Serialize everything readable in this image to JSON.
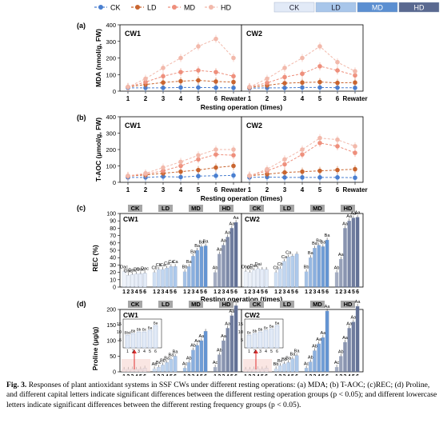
{
  "legend_line": [
    {
      "name": "CK",
      "color": "#4a7fd0"
    },
    {
      "name": "LD",
      "color": "#c9652f"
    },
    {
      "name": "MD",
      "color": "#ee8f7c"
    },
    {
      "name": "HD",
      "color": "#f2b9ab"
    }
  ],
  "legend_bar": [
    {
      "name": "CK",
      "color": "#e2eaf7"
    },
    {
      "name": "LD",
      "color": "#a8c6ea"
    },
    {
      "name": "MD",
      "color": "#5b8fd1"
    },
    {
      "name": "HD",
      "color": "#5a6990"
    }
  ],
  "panels": {
    "a": {
      "letter": "(a)",
      "ylabel": "MDA (nmol/g, FW)",
      "xlabel": "Resting operation (times)",
      "yticks": [
        "0",
        "100",
        "200",
        "300",
        "400"
      ],
      "xticks": [
        "1",
        "2",
        "3",
        "4",
        "5",
        "6",
        "Rewater"
      ],
      "sub": [
        "CW1",
        "CW2"
      ]
    },
    "b": {
      "letter": "(b)",
      "ylabel": "T-AOC (μmol/g, FW)",
      "xlabel": "Resting operation (times)",
      "yticks": [
        "0",
        "100",
        "200",
        "300",
        "400"
      ],
      "xticks": [
        "1",
        "2",
        "3",
        "4",
        "5",
        "6",
        "Rewater"
      ],
      "sub": [
        "CW1",
        "CW2"
      ]
    },
    "c": {
      "letter": "(c)",
      "ylabel": "REC (%)",
      "xlabel": "Resting operation (times)",
      "yticks": [
        "0",
        "10",
        "20",
        "30",
        "40",
        "50",
        "60",
        "70",
        "80",
        "90",
        "100"
      ],
      "group_tags": [
        "CK",
        "LD",
        "MD",
        "HD"
      ],
      "xticks": [
        "1",
        "2",
        "3",
        "4",
        "5",
        "6"
      ],
      "sub": [
        "CW1",
        "CW2"
      ]
    },
    "d": {
      "letter": "(d)",
      "ylabel": "Proline (μg/g)",
      "xlabel": "Resting operation (times)",
      "yticks": [
        "0",
        "50",
        "100",
        "150",
        "200"
      ],
      "inset_yticks": [
        "5",
        "10",
        "15"
      ],
      "group_tags": [
        "CK",
        "LD",
        "MD",
        "HD"
      ],
      "xticks": [
        "1",
        "2",
        "3",
        "4",
        "5",
        "6"
      ],
      "sub": [
        "CW1",
        "CW2"
      ]
    }
  },
  "chart_data": [
    {
      "type": "line",
      "id": "a-cw1",
      "panel": "CW1",
      "ylabel": "MDA (nmol/g, FW)",
      "x": [
        "1",
        "2",
        "3",
        "4",
        "5",
        "6",
        "Rewater"
      ],
      "ylim": [
        0,
        400
      ],
      "series": [
        {
          "name": "CK",
          "values": [
            20,
            20,
            20,
            22,
            22,
            21,
            20
          ]
        },
        {
          "name": "LD",
          "values": [
            25,
            40,
            52,
            60,
            65,
            58,
            55
          ]
        },
        {
          "name": "MD",
          "values": [
            25,
            55,
            90,
            115,
            125,
            115,
            90
          ]
        },
        {
          "name": "HD",
          "values": [
            25,
            75,
            140,
            200,
            270,
            315,
            200
          ]
        }
      ]
    },
    {
      "type": "line",
      "id": "a-cw2",
      "panel": "CW2",
      "ylabel": "MDA (nmol/g, FW)",
      "x": [
        "1",
        "2",
        "3",
        "4",
        "5",
        "6",
        "Rewater"
      ],
      "ylim": [
        0,
        400
      ],
      "series": [
        {
          "name": "CK",
          "values": [
            18,
            20,
            20,
            22,
            22,
            21,
            20
          ]
        },
        {
          "name": "LD",
          "values": [
            22,
            35,
            48,
            52,
            55,
            50,
            52
          ]
        },
        {
          "name": "MD",
          "values": [
            25,
            50,
            85,
            105,
            150,
            125,
            95
          ]
        },
        {
          "name": "HD",
          "values": [
            25,
            75,
            140,
            200,
            270,
            175,
            120
          ]
        }
      ]
    },
    {
      "type": "line",
      "id": "b-cw1",
      "panel": "CW1",
      "ylabel": "T-AOC (μmol/g, FW)",
      "x": [
        "1",
        "2",
        "3",
        "4",
        "5",
        "6",
        "Rewater"
      ],
      "ylim": [
        0,
        400
      ],
      "series": [
        {
          "name": "CK",
          "values": [
            30,
            30,
            35,
            32,
            38,
            40,
            42
          ]
        },
        {
          "name": "LD",
          "values": [
            38,
            45,
            55,
            65,
            75,
            90,
            100
          ]
        },
        {
          "name": "MD",
          "values": [
            38,
            50,
            70,
            100,
            140,
            170,
            165
          ]
        },
        {
          "name": "HD",
          "values": [
            40,
            55,
            90,
            125,
            165,
            200,
            200
          ]
        }
      ]
    },
    {
      "type": "line",
      "id": "b-cw2",
      "panel": "CW2",
      "ylabel": "T-AOC (μmol/g, FW)",
      "x": [
        "1",
        "2",
        "3",
        "4",
        "5",
        "6",
        "Rewater"
      ],
      "ylim": [
        0,
        400
      ],
      "series": [
        {
          "name": "CK",
          "values": [
            30,
            32,
            30,
            30,
            30,
            30,
            28
          ]
        },
        {
          "name": "LD",
          "values": [
            40,
            50,
            60,
            65,
            70,
            75,
            80
          ]
        },
        {
          "name": "MD",
          "values": [
            40,
            70,
            110,
            170,
            240,
            220,
            180
          ]
        },
        {
          "name": "HD",
          "values": [
            40,
            80,
            140,
            200,
            270,
            260,
            220
          ]
        }
      ]
    },
    {
      "type": "bar",
      "id": "c-cw1",
      "panel": "CW1",
      "ylabel": "REC (%)",
      "ylim": [
        0,
        100
      ],
      "groups": [
        "CK",
        "LD",
        "MD",
        "HD"
      ],
      "values": [
        [
          21,
          16,
          17,
          18,
          18,
          19
        ],
        [
          20,
          24,
          24,
          26,
          28,
          28
        ],
        [
          21,
          28,
          42,
          50,
          55,
          56
        ],
        [
          20,
          45,
          57,
          68,
          80,
          88
        ]
      ],
      "labels": [
        [
          "Dac",
          "Dbc",
          "Dac",
          "Da",
          "Dac",
          "Dac"
        ],
        [
          "Cb",
          "Cb",
          "Ca",
          "Ca",
          "Ca",
          "Ca"
        ],
        [
          "Bb",
          "Ba",
          "Ba",
          "Ba",
          "Ba",
          "Ba"
        ],
        [
          "Ab",
          "Aa",
          "Aa",
          "Aa",
          "Aa",
          "Aa"
        ]
      ]
    },
    {
      "type": "bar",
      "id": "c-cw2",
      "panel": "CW2",
      "ylabel": "REC (%)",
      "ylim": [
        0,
        100
      ],
      "groups": [
        "CK",
        "LD",
        "MD",
        "HD"
      ],
      "values": [
        [
          21,
          20,
          23,
          25,
          24,
          24
        ],
        [
          20,
          25,
          35,
          41,
          42,
          45
        ],
        [
          21,
          40,
          53,
          57,
          55,
          64
        ],
        [
          20,
          38,
          80,
          90,
          94,
          95
        ]
      ],
      "labels": [
        [
          "Dbd",
          "Da",
          "Dac",
          "Dai",
          "",
          ""
        ],
        [
          "Cb",
          "Cb",
          "Ca",
          "Ca",
          "",
          ""
        ],
        [
          "Bb",
          "Ba",
          "Ba",
          "Ba",
          "Ba",
          "Ba"
        ],
        [
          "Ab",
          "Aa",
          "Aa",
          "Aa",
          "Aa",
          "Aa"
        ]
      ]
    },
    {
      "type": "bar",
      "id": "d-cw1",
      "panel": "CW1",
      "ylabel": "Proline (μg/g)",
      "ylim": [
        0,
        200
      ],
      "groups": [
        "CK",
        "LD",
        "MD",
        "HD"
      ],
      "values": [
        [
          8,
          8,
          9,
          8,
          9,
          12
        ],
        [
          10,
          15,
          22,
          30,
          40,
          50
        ],
        [
          12,
          30,
          70,
          85,
          100,
          130
        ],
        [
          15,
          55,
          100,
          140,
          180,
          215
        ]
      ],
      "labels": [
        [
          "",
          "",
          "",
          "",
          "",
          ""
        ],
        [
          "Ab",
          "Bc",
          "Bb",
          "Ba",
          "Ba",
          "Ba"
        ],
        [
          "Ac",
          "Ab",
          "Ab",
          "Aa",
          "Aa",
          ""
        ],
        [
          "Ac",
          "Ab",
          "Aa",
          "Aa",
          "Aa",
          "Aa"
        ]
      ],
      "inset": {
        "values": [
          8,
          9,
          10,
          10,
          11,
          14
        ],
        "labels": [
          "Bbd",
          "Bb",
          "Bb",
          "Bc",
          "Ba",
          "Ba"
        ]
      }
    },
    {
      "type": "bar",
      "id": "d-cw2",
      "panel": "CW2",
      "ylabel": "Proline (μg/g)",
      "ylim": [
        0,
        200
      ],
      "groups": [
        "CK",
        "LD",
        "MD",
        "HD"
      ],
      "values": [
        [
          8,
          8,
          9,
          10,
          9,
          12
        ],
        [
          10,
          20,
          26,
          30,
          42,
          52
        ],
        [
          12,
          32,
          68,
          90,
          110,
          195
        ],
        [
          15,
          50,
          95,
          140,
          160,
          210
        ]
      ],
      "labels": [
        [
          "",
          "",
          "",
          "",
          "",
          ""
        ],
        [
          "Bb",
          "Bc",
          "Bb",
          "Ba",
          "Ba",
          "Ba"
        ],
        [
          "Ac",
          "Ab",
          "Ab",
          "Aa",
          "Aa",
          "Aa"
        ],
        [
          "Ac",
          "Ab",
          "Aa",
          "Aa",
          "Aa",
          "Aa"
        ]
      ],
      "inset": {
        "values": [
          8,
          9,
          10,
          11,
          12,
          14
        ],
        "labels": [
          "Bc",
          "Bb",
          "Bb",
          "Bc",
          "Ba",
          "Ba"
        ]
      }
    }
  ],
  "caption": {
    "lead": "Fig. 3.",
    "text": "Responses of plant antioxidant systems in SSF CWs under different resting operations: (a) MDA; (b) T-AOC; (c)REC; (d) Proline, and different capital letters indicate significant differences between the different resting operation groups (p < 0.05); and different lowercase letters indicate significant differences between the different resting frequency groups (p < 0.05)."
  }
}
